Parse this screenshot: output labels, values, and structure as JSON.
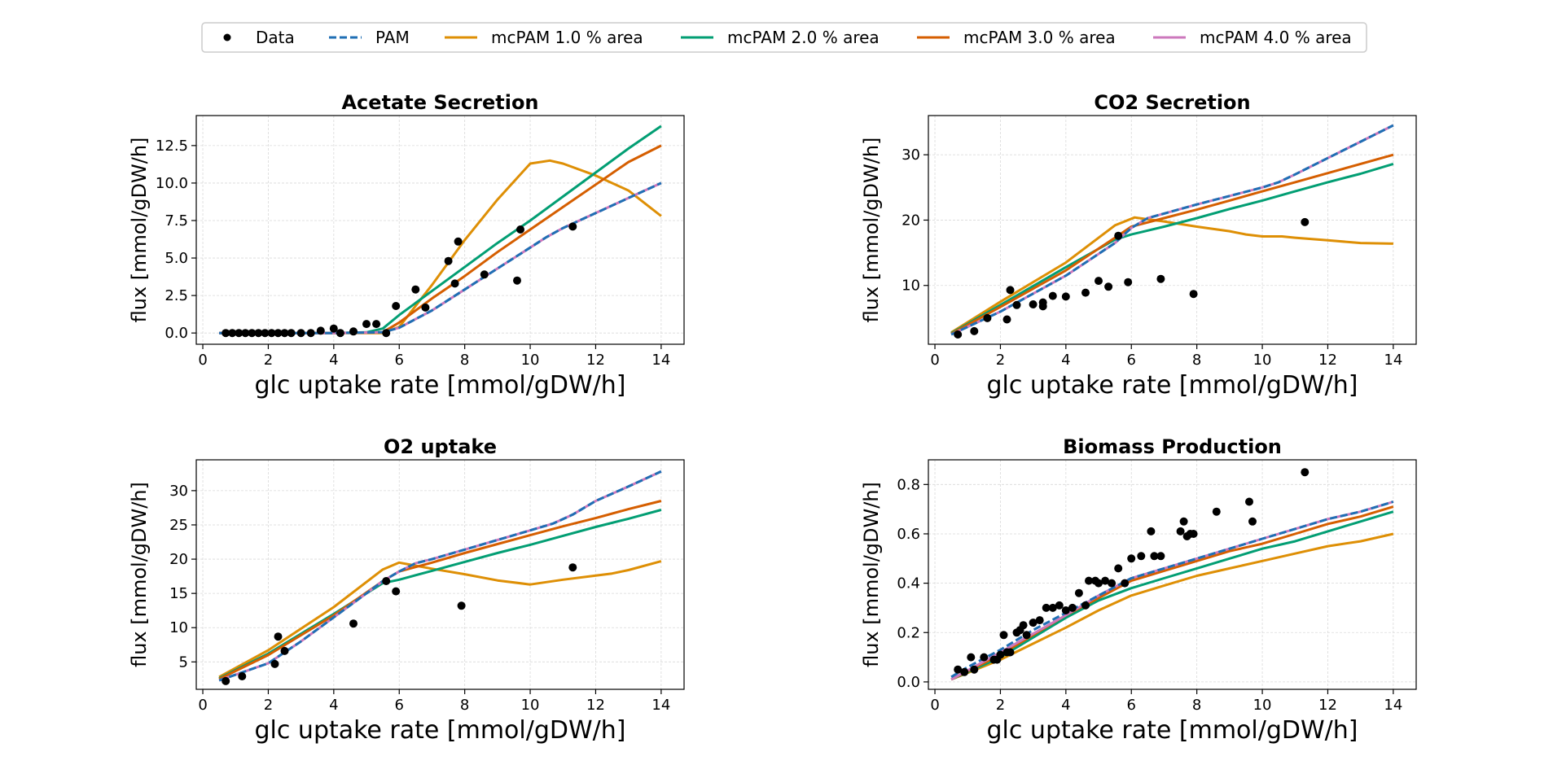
{
  "legend": {
    "entries": [
      {
        "label": "Data",
        "style": "dot",
        "color": "#000000"
      },
      {
        "label": "PAM",
        "style": "dashed",
        "color": "#1f6fb4"
      },
      {
        "label": "mcPAM 1.0 % area",
        "style": "solid",
        "color": "#de8f05"
      },
      {
        "label": "mcPAM 2.0 % area",
        "style": "solid",
        "color": "#029e73"
      },
      {
        "label": "mcPAM 3.0 % area",
        "style": "solid",
        "color": "#d55e00"
      },
      {
        "label": "mcPAM 4.0 % area",
        "style": "solid",
        "color": "#cc78bc"
      }
    ],
    "placement": "top-center"
  },
  "chart_data": [
    {
      "type": "line",
      "title": "Acetate Secretion",
      "xlabel": "glc uptake rate [mmol/gDW/h]",
      "ylabel": "flux [mmol/gDW/h]",
      "xlim": [
        -0.2,
        14.7
      ],
      "ylim": [
        -0.75,
        14.5
      ],
      "xticks": [
        0,
        2,
        4,
        6,
        8,
        10,
        12,
        14
      ],
      "xticklabels": [
        "0",
        "2",
        "4",
        "6",
        "8",
        "10",
        "12",
        "14"
      ],
      "yticks": [
        0,
        2.5,
        5,
        7.5,
        10,
        12.5
      ],
      "yticklabels": [
        "0.0",
        "2.5",
        "5.0",
        "7.5",
        "10.0",
        "12.5"
      ],
      "grid": true,
      "scatter": {
        "x": [
          0.7,
          0.9,
          1.1,
          1.3,
          1.5,
          1.7,
          1.9,
          2.1,
          2.3,
          2.5,
          2.7,
          3.0,
          3.3,
          3.6,
          4.0,
          4.2,
          4.6,
          5.0,
          5.3,
          5.6,
          5.9,
          6.5,
          6.8,
          7.5,
          7.7,
          7.8,
          8.6,
          9.6,
          9.7,
          11.3
        ],
        "y": [
          0.0,
          0.0,
          0.0,
          0.0,
          0.0,
          0.0,
          0.0,
          0.0,
          0.0,
          0.0,
          0.0,
          0.0,
          0.0,
          0.15,
          0.3,
          0.0,
          0.1,
          0.6,
          0.6,
          0.0,
          1.8,
          2.9,
          1.7,
          4.8,
          3.3,
          6.1,
          3.9,
          3.5,
          6.9,
          7.1
        ]
      },
      "series": [
        {
          "name": "PAM",
          "x": [
            0.5,
            2,
            4,
            5.5,
            6,
            7,
            8,
            9,
            10,
            10.5,
            11,
            12,
            13,
            14
          ],
          "y": [
            0,
            0,
            0,
            0.05,
            0.35,
            1.5,
            2.9,
            4.3,
            5.7,
            6.4,
            7.0,
            8.0,
            9.0,
            10.0
          ]
        },
        {
          "name": "mcPAM 1.0 % area",
          "x": [
            0.5,
            2,
            4,
            5.5,
            6,
            7,
            8,
            9,
            10,
            10.6,
            11,
            12,
            13,
            14
          ],
          "y": [
            0,
            0,
            0,
            0,
            0.4,
            3.2,
            6.2,
            8.9,
            11.3,
            11.5,
            11.3,
            10.5,
            9.5,
            7.8
          ]
        },
        {
          "name": "mcPAM 2.0 % area",
          "x": [
            0.5,
            2,
            4,
            5,
            5.5,
            6,
            7,
            8,
            9,
            10,
            11,
            12,
            13,
            14
          ],
          "y": [
            0,
            0,
            0,
            0.05,
            0.3,
            1.2,
            2.8,
            4.4,
            6.0,
            7.5,
            9.1,
            10.7,
            12.3,
            13.8
          ]
        },
        {
          "name": "mcPAM 3.0 % area",
          "x": [
            0.5,
            2,
            4,
            5.5,
            6,
            7,
            8,
            9,
            10,
            11,
            12,
            13,
            14
          ],
          "y": [
            0,
            0,
            0,
            0.05,
            0.7,
            2.3,
            3.8,
            5.4,
            6.9,
            8.4,
            9.9,
            11.4,
            12.5
          ]
        },
        {
          "name": "mcPAM 4.0 % area",
          "x": [
            0.5,
            2,
            4,
            5.5,
            6,
            7,
            8,
            9,
            10,
            10.5,
            11,
            12,
            13,
            14
          ],
          "y": [
            0,
            0,
            0,
            0.05,
            0.35,
            1.5,
            2.9,
            4.3,
            5.7,
            6.4,
            7.0,
            8.0,
            9.0,
            10.0
          ]
        }
      ]
    },
    {
      "type": "line",
      "title": "CO2 Secretion",
      "xlabel": "glc uptake rate [mmol/gDW/h]",
      "ylabel": "flux [mmol/gDW/h]",
      "xlim": [
        -0.2,
        14.7
      ],
      "ylim": [
        1,
        36
      ],
      "xticks": [
        0,
        2,
        4,
        6,
        8,
        10,
        12,
        14
      ],
      "xticklabels": [
        "0",
        "2",
        "4",
        "6",
        "8",
        "10",
        "12",
        "14"
      ],
      "yticks": [
        10,
        20,
        30
      ],
      "yticklabels": [
        "10",
        "20",
        "30"
      ],
      "grid": true,
      "scatter": {
        "x": [
          0.7,
          1.2,
          1.6,
          2.2,
          2.3,
          2.5,
          3.0,
          3.3,
          3.3,
          3.6,
          4.0,
          4.6,
          5.0,
          5.3,
          5.6,
          5.9,
          6.9,
          7.9,
          11.3
        ],
        "y": [
          2.5,
          3.0,
          5.0,
          4.8,
          9.3,
          7.0,
          7.1,
          7.4,
          6.8,
          8.4,
          8.3,
          8.9,
          10.7,
          9.8,
          17.6,
          10.5,
          11.0,
          8.7,
          19.7
        ]
      },
      "series": [
        {
          "name": "PAM",
          "x": [
            0.5,
            2,
            4,
            5.5,
            6,
            6.5,
            7,
            8,
            9,
            10,
            10.5,
            11,
            12,
            13,
            14
          ],
          "y": [
            2.5,
            6.0,
            11.5,
            16.5,
            18.8,
            20.3,
            21.0,
            22.4,
            23.7,
            25.0,
            25.8,
            27.0,
            29.5,
            32.0,
            34.5
          ]
        },
        {
          "name": "mcPAM 1.0 % area",
          "x": [
            0.5,
            2,
            4,
            5.5,
            6.1,
            7,
            8,
            9,
            9.5,
            10,
            10.6,
            11,
            12,
            13,
            14
          ],
          "y": [
            2.8,
            7.5,
            13.5,
            19.2,
            20.4,
            19.8,
            19.0,
            18.3,
            17.8,
            17.5,
            17.5,
            17.3,
            16.9,
            16.5,
            16.4
          ]
        },
        {
          "name": "mcPAM 2.0 % area",
          "x": [
            0.5,
            2,
            4,
            5.5,
            6,
            7,
            8,
            9,
            10,
            11,
            12,
            13,
            14
          ],
          "y": [
            2.7,
            7.0,
            12.8,
            17.0,
            17.8,
            19.0,
            20.3,
            21.7,
            23.0,
            24.4,
            25.8,
            27.1,
            28.6
          ]
        },
        {
          "name": "mcPAM 3.0 % area",
          "x": [
            0.5,
            2,
            4,
            5.5,
            6,
            7,
            8,
            9,
            10,
            11,
            12,
            13,
            14
          ],
          "y": [
            2.6,
            6.7,
            12.3,
            17.3,
            19.0,
            20.3,
            21.6,
            23.0,
            24.4,
            25.8,
            27.2,
            28.6,
            30.0
          ]
        },
        {
          "name": "mcPAM 4.0 % area",
          "x": [
            0.5,
            2,
            4,
            5.5,
            6,
            6.5,
            7,
            8,
            9,
            10,
            10.5,
            11,
            12,
            13,
            14
          ],
          "y": [
            2.5,
            6.0,
            11.5,
            16.5,
            18.8,
            20.3,
            21.0,
            22.4,
            23.7,
            25.0,
            25.8,
            27.0,
            29.5,
            32.0,
            34.5
          ]
        }
      ]
    },
    {
      "type": "line",
      "title": "O2 uptake",
      "xlabel": "glc uptake rate [mmol/gDW/h]",
      "ylabel": "flux [mmol/gDW/h]",
      "xlim": [
        -0.2,
        14.7
      ],
      "ylim": [
        1,
        34.5
      ],
      "xticks": [
        0,
        2,
        4,
        6,
        8,
        10,
        12,
        14
      ],
      "xticklabels": [
        "0",
        "2",
        "4",
        "6",
        "8",
        "10",
        "12",
        "14"
      ],
      "yticks": [
        5,
        10,
        15,
        20,
        25,
        30
      ],
      "yticklabels": [
        "5",
        "10",
        "15",
        "20",
        "25",
        "30"
      ],
      "grid": true,
      "scatter": {
        "x": [
          0.7,
          1.2,
          2.2,
          2.3,
          2.5,
          4.6,
          5.6,
          5.9,
          7.9,
          11.3
        ],
        "y": [
          2.2,
          2.9,
          4.7,
          8.7,
          6.6,
          10.6,
          16.8,
          15.3,
          13.2,
          18.8
        ]
      },
      "series": [
        {
          "name": "PAM",
          "x": [
            0.5,
            2,
            3,
            4,
            5,
            5.5,
            6,
            6.5,
            7,
            8,
            9,
            10,
            10.7,
            11.3,
            12,
            13,
            14
          ],
          "y": [
            2.3,
            4.8,
            8.0,
            11.5,
            15.0,
            16.8,
            18.2,
            19.4,
            20.0,
            21.4,
            22.8,
            24.2,
            25.2,
            26.5,
            28.5,
            30.6,
            32.8
          ]
        },
        {
          "name": "mcPAM 1.0 % area",
          "x": [
            0.5,
            2,
            4,
            5.5,
            6,
            7,
            8,
            9,
            10,
            11,
            12,
            12.5,
            13,
            14
          ],
          "y": [
            2.8,
            6.7,
            13.0,
            18.5,
            19.5,
            18.6,
            17.8,
            16.9,
            16.3,
            17.0,
            17.6,
            17.9,
            18.4,
            19.7
          ]
        },
        {
          "name": "mcPAM 2.0 % area",
          "x": [
            0.5,
            2,
            4,
            5.5,
            6,
            7,
            8,
            9,
            10,
            11,
            12,
            13,
            14
          ],
          "y": [
            2.6,
            6.2,
            12.0,
            16.5,
            17.0,
            18.3,
            19.6,
            20.9,
            22.1,
            23.4,
            24.7,
            25.9,
            27.2
          ]
        },
        {
          "name": "mcPAM 3.0 % area",
          "x": [
            0.5,
            2,
            4,
            5.5,
            6,
            7,
            8,
            9,
            10,
            11,
            12,
            13,
            14
          ],
          "y": [
            2.5,
            6.0,
            11.8,
            16.8,
            18.2,
            19.5,
            20.9,
            22.2,
            23.5,
            24.8,
            26.0,
            27.3,
            28.5
          ]
        },
        {
          "name": "mcPAM 4.0 % area",
          "x": [
            0.5,
            2,
            3,
            4,
            5,
            5.5,
            6,
            6.5,
            7,
            8,
            9,
            10,
            10.7,
            11.3,
            12,
            13,
            14
          ],
          "y": [
            2.3,
            4.8,
            8.0,
            11.5,
            15.0,
            16.8,
            18.2,
            19.4,
            20.0,
            21.4,
            22.8,
            24.2,
            25.2,
            26.5,
            28.5,
            30.6,
            32.8
          ]
        }
      ]
    },
    {
      "type": "line",
      "title": "Biomass Production",
      "xlabel": "glc uptake rate [mmol/gDW/h]",
      "ylabel": "flux [mmol/gDW/h]",
      "xlim": [
        -0.2,
        14.7
      ],
      "ylim": [
        -0.03,
        0.9
      ],
      "xticks": [
        0,
        2,
        4,
        6,
        8,
        10,
        12,
        14
      ],
      "xticklabels": [
        "0",
        "2",
        "4",
        "6",
        "8",
        "10",
        "12",
        "14"
      ],
      "yticks": [
        0.0,
        0.2,
        0.4,
        0.6,
        0.8
      ],
      "yticklabels": [
        "0.0",
        "0.2",
        "0.4",
        "0.6",
        "0.8"
      ],
      "grid": true,
      "scatter": {
        "x": [
          0.7,
          0.9,
          1.1,
          1.2,
          1.5,
          1.8,
          1.9,
          2.0,
          2.1,
          2.2,
          2.3,
          2.5,
          2.6,
          2.7,
          2.8,
          3.0,
          3.2,
          3.4,
          3.6,
          3.8,
          4.0,
          4.2,
          4.4,
          4.6,
          4.7,
          4.9,
          5.0,
          5.2,
          5.4,
          5.6,
          5.8,
          6.0,
          6.3,
          6.6,
          6.7,
          6.9,
          7.5,
          7.6,
          7.7,
          7.8,
          7.9,
          8.6,
          9.6,
          9.7,
          11.3
        ],
        "y": [
          0.05,
          0.04,
          0.1,
          0.05,
          0.1,
          0.09,
          0.09,
          0.11,
          0.19,
          0.12,
          0.12,
          0.2,
          0.21,
          0.23,
          0.19,
          0.24,
          0.25,
          0.3,
          0.3,
          0.31,
          0.29,
          0.3,
          0.36,
          0.31,
          0.41,
          0.41,
          0.4,
          0.41,
          0.4,
          0.46,
          0.4,
          0.5,
          0.51,
          0.61,
          0.51,
          0.51,
          0.61,
          0.65,
          0.59,
          0.6,
          0.6,
          0.69,
          0.73,
          0.65,
          0.85
        ]
      },
      "series": [
        {
          "name": "PAM",
          "x": [
            0.5,
            1,
            2,
            3,
            4,
            5,
            6,
            7,
            8,
            9,
            10,
            11,
            12,
            13,
            14
          ],
          "y": [
            0.02,
            0.06,
            0.13,
            0.21,
            0.28,
            0.35,
            0.42,
            0.46,
            0.5,
            0.54,
            0.58,
            0.62,
            0.66,
            0.69,
            0.73
          ]
        },
        {
          "name": "mcPAM 1.0 % area",
          "x": [
            0.5,
            2,
            4,
            5,
            6,
            7,
            8,
            9,
            10,
            11,
            12,
            13,
            14
          ],
          "y": [
            0.01,
            0.09,
            0.22,
            0.29,
            0.35,
            0.39,
            0.43,
            0.46,
            0.49,
            0.52,
            0.55,
            0.57,
            0.6
          ]
        },
        {
          "name": "mcPAM 2.0 % area",
          "x": [
            0.5,
            2,
            4,
            5,
            6,
            7,
            8,
            9,
            10,
            11,
            12,
            13,
            14
          ],
          "y": [
            0.01,
            0.1,
            0.26,
            0.33,
            0.38,
            0.42,
            0.46,
            0.5,
            0.54,
            0.57,
            0.61,
            0.65,
            0.69
          ]
        },
        {
          "name": "mcPAM 3.0 % area",
          "x": [
            0.5,
            2,
            4,
            5,
            6,
            7,
            8,
            9,
            10,
            11,
            12,
            13,
            14
          ],
          "y": [
            0.01,
            0.11,
            0.27,
            0.34,
            0.41,
            0.45,
            0.49,
            0.53,
            0.56,
            0.6,
            0.64,
            0.67,
            0.71
          ]
        },
        {
          "name": "mcPAM 4.0 % area",
          "x": [
            0.5,
            2,
            4,
            5,
            6,
            7,
            8,
            9,
            10,
            11,
            12,
            13,
            14
          ],
          "y": [
            0.01,
            0.12,
            0.27,
            0.35,
            0.42,
            0.46,
            0.5,
            0.54,
            0.58,
            0.62,
            0.66,
            0.69,
            0.73
          ]
        }
      ]
    }
  ]
}
